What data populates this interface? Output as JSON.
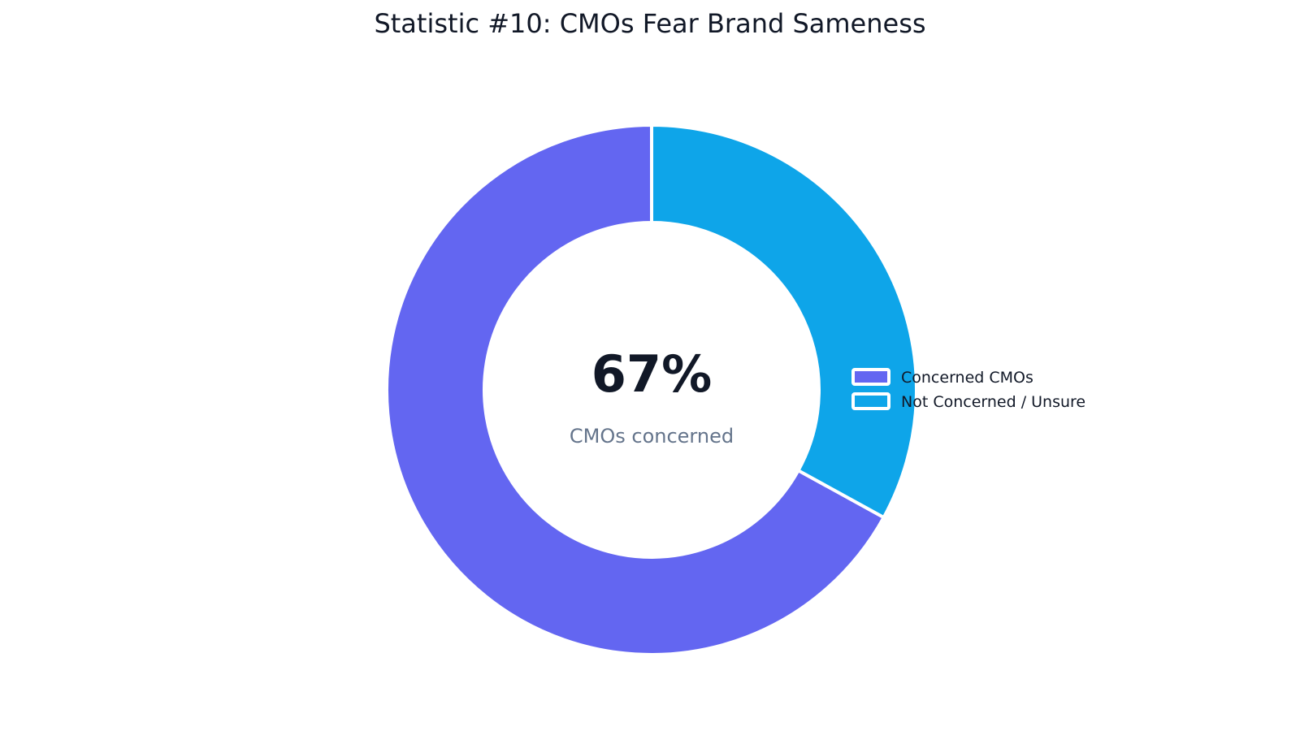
{
  "chart_data": {
    "type": "pie",
    "title": "Statistic #10: CMOs Fear Brand Sameness",
    "hole": true,
    "slices": [
      {
        "label": "Concerned CMOs",
        "value": 67,
        "color": "#6366f1"
      },
      {
        "label": "Not Concerned / Unsure",
        "value": 33,
        "color": "#0ea5e9"
      }
    ],
    "center_value": "67%",
    "center_caption": "CMOs concerned",
    "legend": {
      "placement": "right",
      "entries": [
        "Concerned CMOs",
        "Not Concerned / Unsure"
      ]
    }
  }
}
